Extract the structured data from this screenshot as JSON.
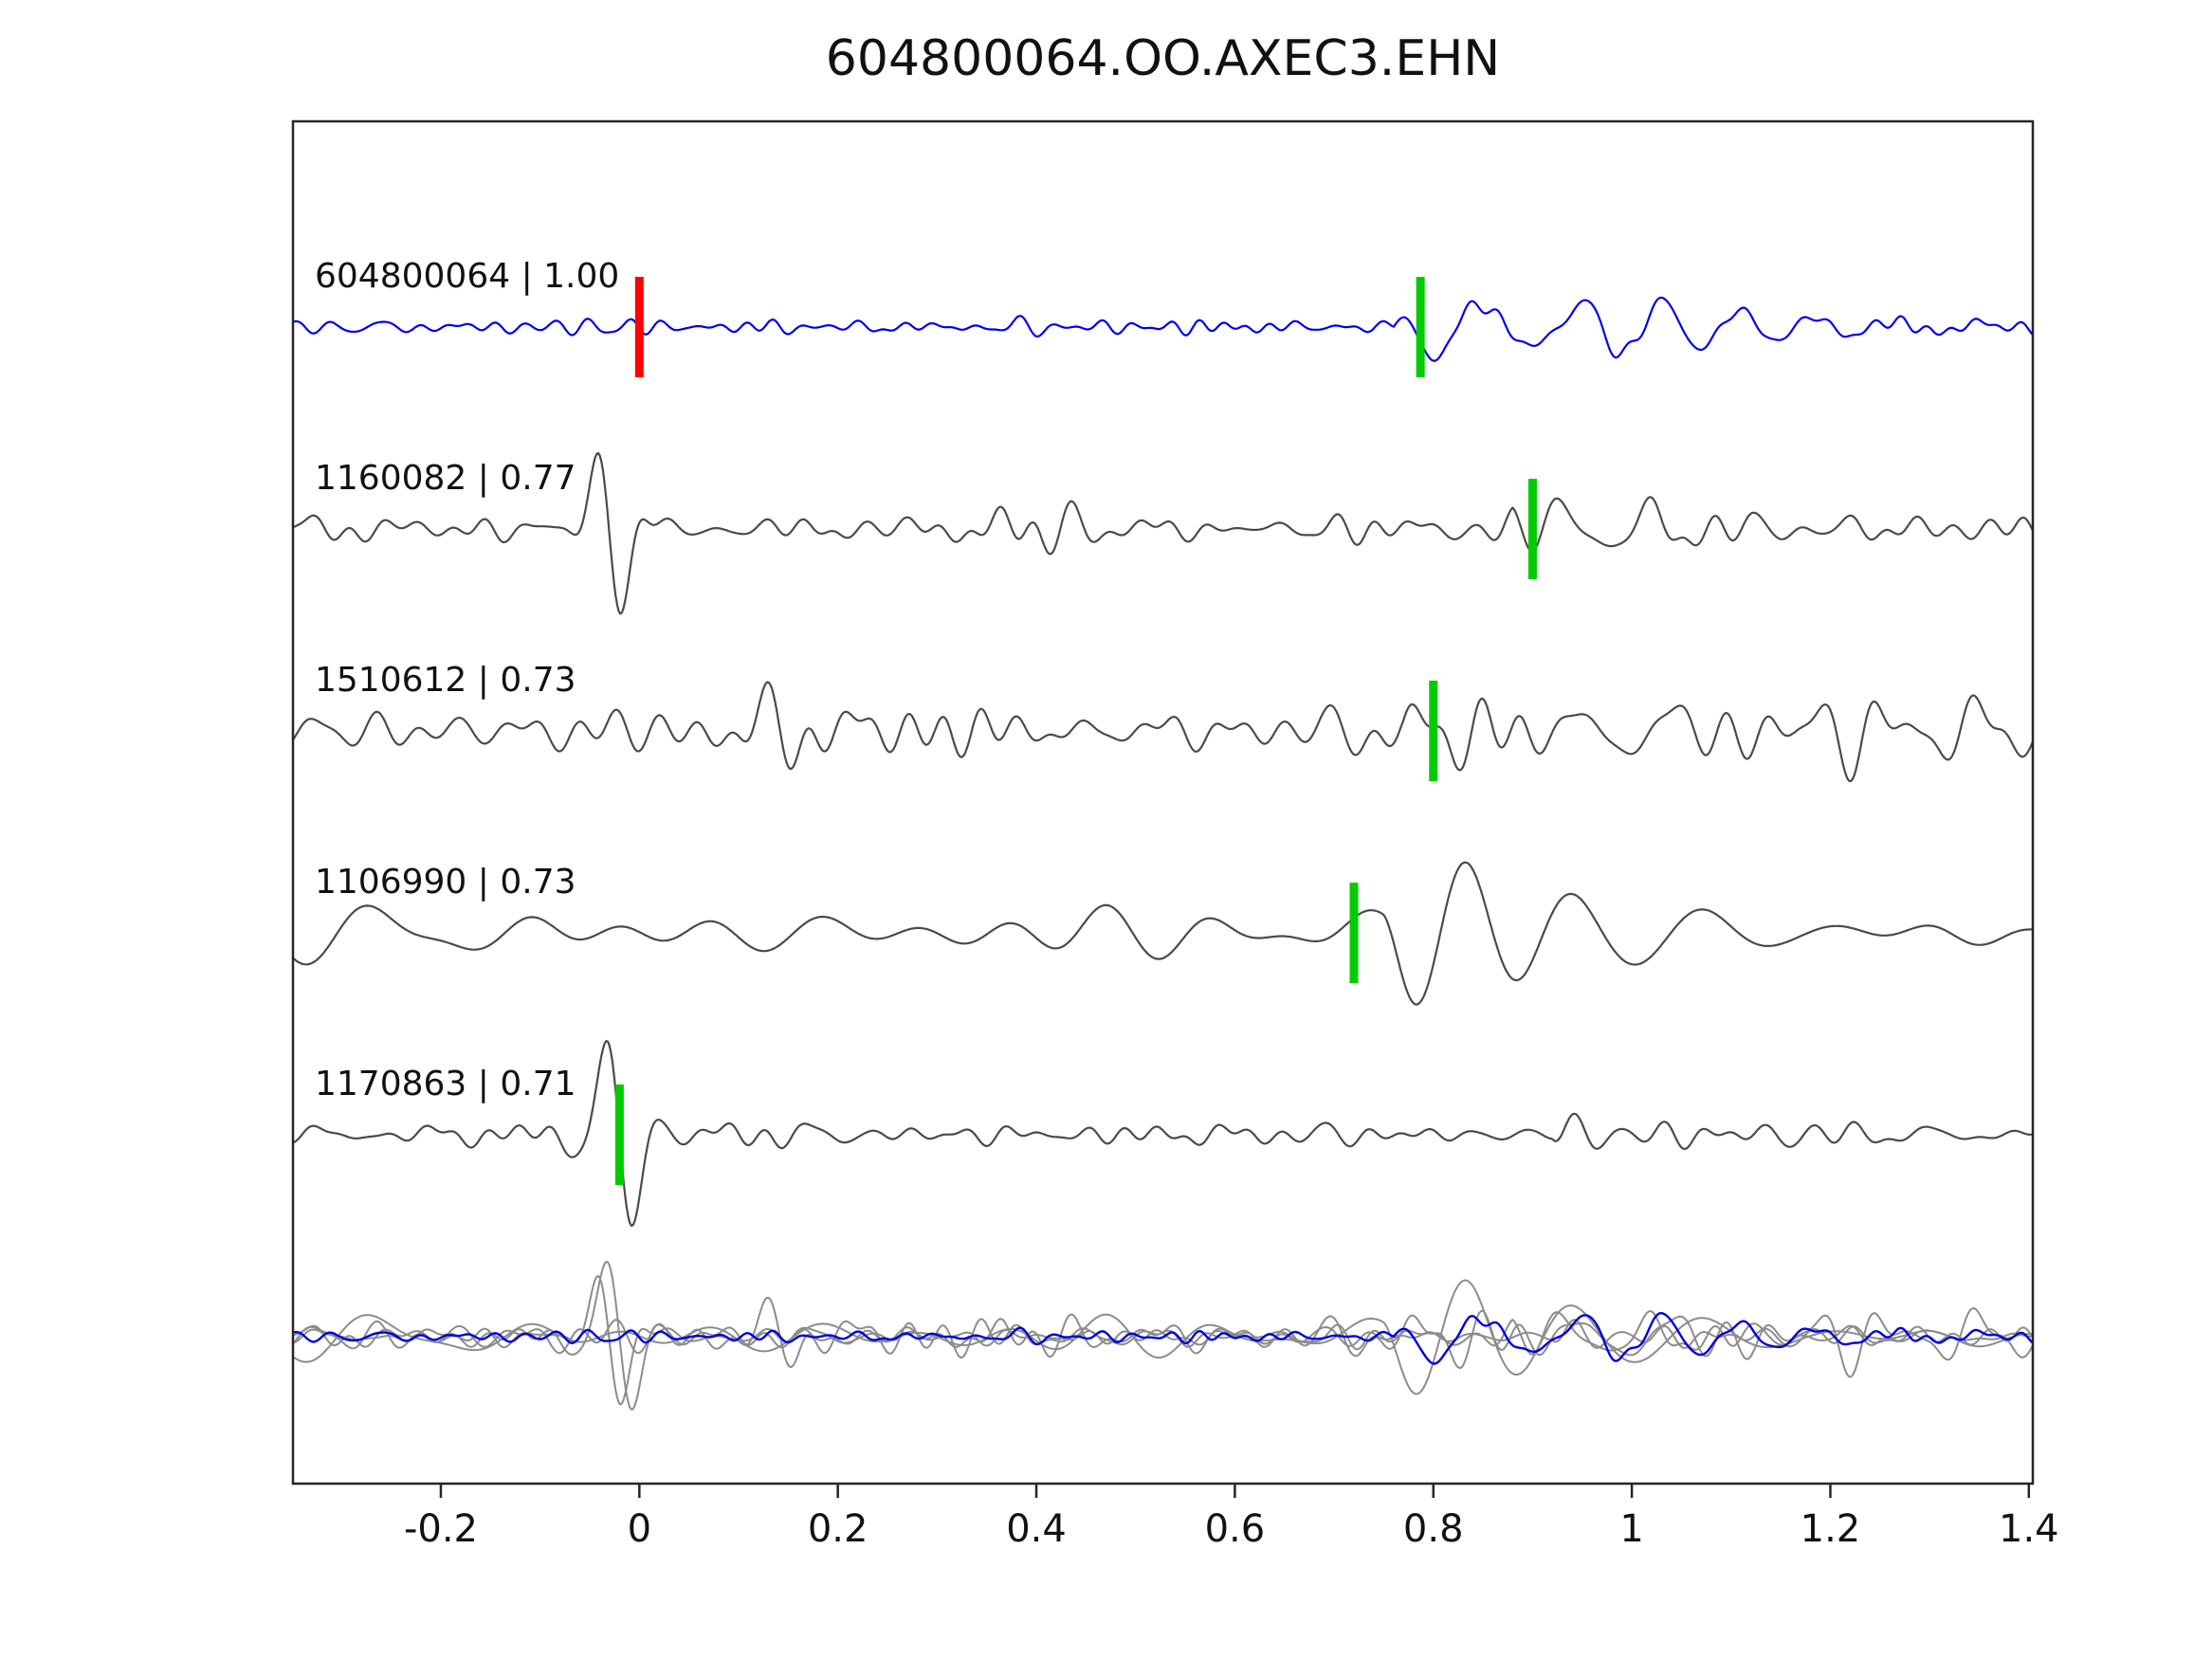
{
  "figure": {
    "title": "604800064.OO.AXEC3.EHN"
  },
  "chart_data": {
    "type": "line",
    "title": "604800064.OO.AXEC3.EHN",
    "description": "Waveform similarity plot: reference trace (blue) with candidate traces (gray), pick markers (green) and reference pick (red), and an overlay of all traces at the bottom.",
    "x_axis": {
      "min": -0.349,
      "max": 1.404,
      "ticks": [
        -0.2,
        0,
        0.2,
        0.4,
        0.6,
        0.8,
        1,
        1.2,
        1.4
      ],
      "tick_labels": [
        "-0.2",
        "0",
        "0.2",
        "0.4",
        "0.6",
        "0.8",
        "1",
        "1.2",
        "1.4"
      ],
      "grid": false
    },
    "colors": {
      "reference_trace": "#0000ee",
      "candidate_trace": "#4a4a4a",
      "overlay_gray": "#8c8c8c",
      "overlay_blue": "#0000dd",
      "pick_green": "#00cc00",
      "pick_red": "#ff0000",
      "axis": "#262626"
    },
    "traces": [
      {
        "id": "604800064",
        "similarity": 1.0,
        "label_text": "604800064 | 1.00",
        "color": "#0000ee",
        "picks": [
          {
            "x": 0.0,
            "color": "#ff0000"
          },
          {
            "x": 0.787,
            "color": "#00cc00"
          }
        ],
        "synthesis": {
          "seed": 11,
          "noise": {
            "amp": 5,
            "f": [
              10,
              45
            ]
          },
          "burst": {
            "t": 0.76,
            "amp": 60,
            "rise": 0.03,
            "decay": 0.32,
            "f": [
              10,
              15
            ]
          },
          "spike": null
        }
      },
      {
        "id": "1160082",
        "similarity": 0.77,
        "label_text": "1160082 | 0.77",
        "color": "#4a4a4a",
        "picks": [
          {
            "x": 0.9,
            "color": "#00cc00"
          }
        ],
        "synthesis": {
          "seed": 22,
          "noise": {
            "amp": 12,
            "f": [
              8,
              35
            ]
          },
          "burst": {
            "t": 0.88,
            "amp": 26,
            "rise": 0.02,
            "decay": 0.22,
            "f": [
              9,
              20
            ]
          },
          "spike": {
            "t": -0.03,
            "amp": -110,
            "w": 0.02,
            "period": 0.06
          }
        }
      },
      {
        "id": "1510612",
        "similarity": 0.73,
        "label_text": "1510612 | 0.73",
        "color": "#4a4a4a",
        "picks": [
          {
            "x": 0.8,
            "color": "#00cc00"
          }
        ],
        "synthesis": {
          "seed": 33,
          "noise": {
            "amp": 17,
            "f": [
              7,
              30
            ]
          },
          "burst": {
            "t": 0.77,
            "amp": 42,
            "rise": 0.03,
            "decay": 0.22,
            "f": [
              8,
              14
            ]
          },
          "spike": null
        }
      },
      {
        "id": "1106990",
        "similarity": 0.73,
        "label_text": "1106990 | 0.73",
        "color": "#4a4a4a",
        "picks": [
          {
            "x": 0.72,
            "color": "#00cc00"
          }
        ],
        "synthesis": {
          "seed": 44,
          "noise": {
            "amp": 19,
            "f": [
              4,
              12
            ]
          },
          "burst": {
            "t": 0.75,
            "amp": 62,
            "rise": 0.04,
            "decay": 0.38,
            "f": [
              6,
              11
            ]
          },
          "spike": null
        }
      },
      {
        "id": "1170863",
        "similarity": 0.71,
        "label_text": "1170863 | 0.71",
        "color": "#4a4a4a",
        "picks": [
          {
            "x": -0.02,
            "color": "#00cc00"
          }
        ],
        "synthesis": {
          "seed": 55,
          "noise": {
            "amp": 7,
            "f": [
              9,
              35
            ]
          },
          "burst": {
            "t": 0.92,
            "amp": 28,
            "rise": 0.02,
            "decay": 0.12,
            "f": [
              10,
              20
            ]
          },
          "spike": {
            "t": -0.02,
            "amp": -125,
            "w": 0.022,
            "period": 0.062
          }
        }
      }
    ],
    "overlay": {
      "scale": 0.8,
      "gray_color": "#8c8c8c",
      "blue_color": "#0000dd"
    }
  }
}
